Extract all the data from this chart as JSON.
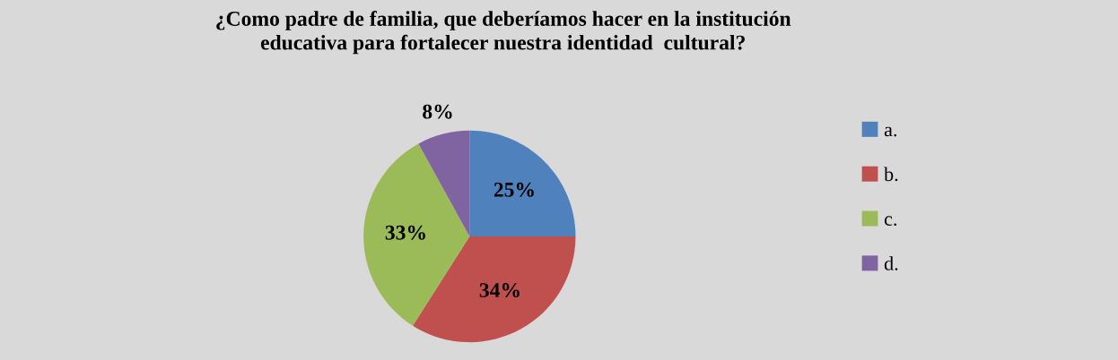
{
  "chart_data": {
    "type": "pie",
    "title": "¿Como padre de familia, que deberíamos hacer en la institución\neducativa para fortalecer nuestra identidad  cultural?",
    "categories": [
      "a.",
      "b.",
      "c.",
      "d."
    ],
    "values": [
      25,
      34,
      33,
      8
    ],
    "value_labels": [
      "25%",
      "34%",
      "33%",
      "8%"
    ],
    "colors": [
      "#4f81bd",
      "#c0504d",
      "#9bbb59",
      "#8064a2"
    ],
    "legend": "right"
  }
}
